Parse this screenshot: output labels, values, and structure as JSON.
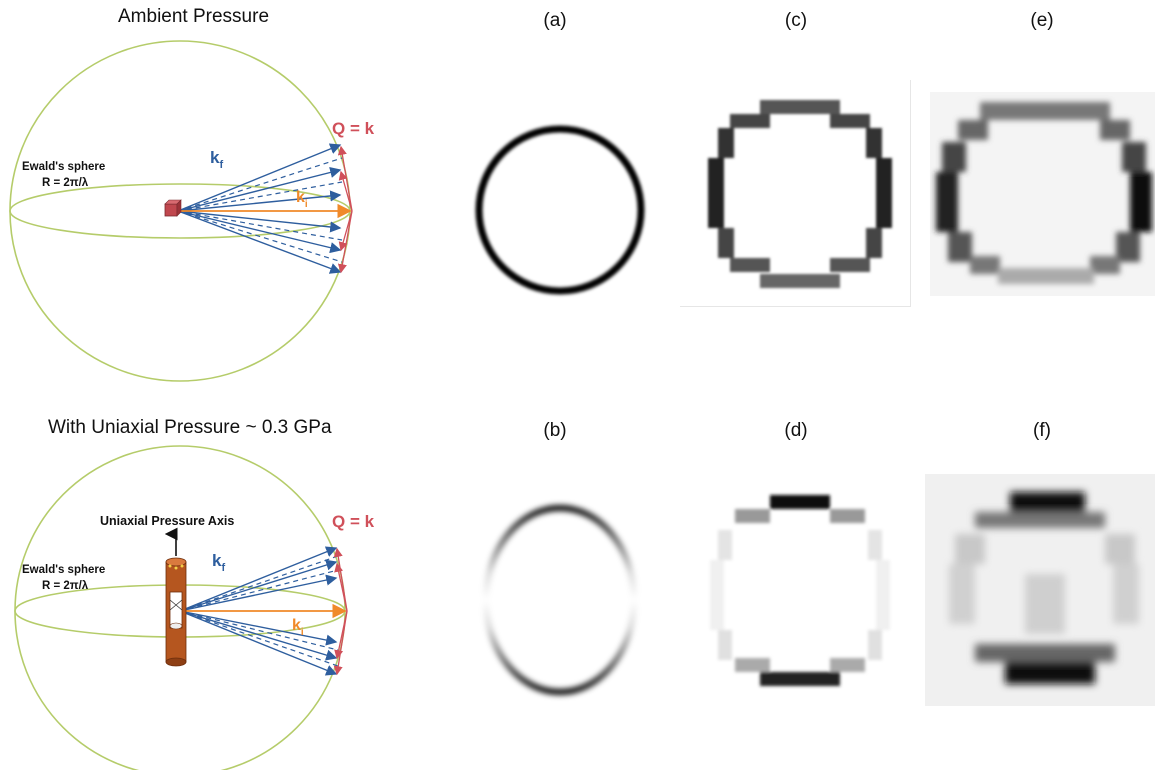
{
  "top_title": "Ambient Pressure",
  "bottom_title": "With Uniaxial Pressure ~ 0.3 GPa",
  "ewald": {
    "name": "Ewald's sphere",
    "radius": "R = 2π/λ"
  },
  "q_label": "Q = k",
  "kf_main": "k",
  "kf_sub": "f",
  "ki_main": "k",
  "ki_sub": "i",
  "pressure_axis": "Uniaxial Pressure Axis",
  "panels": {
    "a": "(a)",
    "b": "(b)",
    "c": "(c)",
    "d": "(d)",
    "e": "(e)",
    "f": "(f)"
  },
  "colors": {
    "sphere": "#b5cc6a",
    "vector_blue": "#2e5e9e",
    "vector_orange": "#f08a2a",
    "q_red": "#d0505a",
    "sample": "#c0474e",
    "cell": "#b5561f"
  }
}
